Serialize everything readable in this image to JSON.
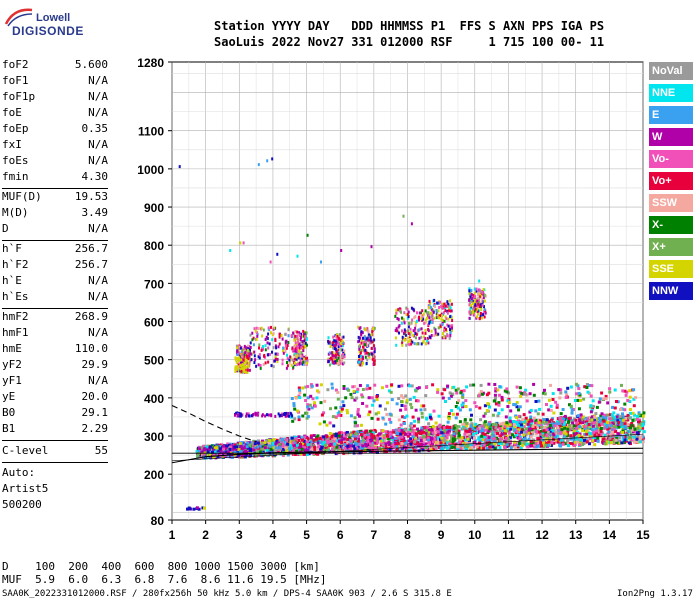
{
  "logo": {
    "line1": "Lowell",
    "line2": "DIGISONDE",
    "color": "#2a3a8c"
  },
  "header": {
    "line1": "Station YYYY DAY   DDD HHMMSS P1  FFS S AXN PPS IGA PS",
    "line2": "SaoLuis 2022 Nov27 331 012000 RSF     1 715 100 00- 11"
  },
  "params": {
    "group1": [
      {
        "name": "foF2",
        "value": "5.600"
      },
      {
        "name": "foF1",
        "value": "N/A"
      },
      {
        "name": "foF1p",
        "value": "N/A"
      },
      {
        "name": "foE",
        "value": "N/A"
      },
      {
        "name": "foEp",
        "value": "0.35"
      },
      {
        "name": "fxI",
        "value": "N/A"
      },
      {
        "name": "foEs",
        "value": "N/A"
      },
      {
        "name": "fmin",
        "value": "4.30"
      }
    ],
    "group2": [
      {
        "name": "MUF(D)",
        "value": "19.53"
      },
      {
        "name": "M(D)",
        "value": "3.49"
      },
      {
        "name": "D",
        "value": "N/A"
      }
    ],
    "group3": [
      {
        "name": "h`F",
        "value": "256.7"
      },
      {
        "name": "h`F2",
        "value": "256.7"
      },
      {
        "name": "h`E",
        "value": "N/A"
      },
      {
        "name": "h`Es",
        "value": "N/A"
      }
    ],
    "group4": [
      {
        "name": "hmF2",
        "value": "268.9"
      },
      {
        "name": "hmF1",
        "value": "N/A"
      },
      {
        "name": "hmE",
        "value": "110.0"
      },
      {
        "name": "yF2",
        "value": "29.9"
      },
      {
        "name": "yF1",
        "value": "N/A"
      },
      {
        "name": "yE",
        "value": "20.0"
      },
      {
        "name": "B0",
        "value": "29.1"
      },
      {
        "name": "B1",
        "value": "2.29"
      }
    ],
    "clevel": {
      "name": "C-level",
      "value": "55"
    },
    "auto": [
      "Auto:",
      "Artist5",
      "500200"
    ]
  },
  "legend": [
    {
      "label": "NoVal",
      "color": "#9a9a9a"
    },
    {
      "label": "NNE",
      "color": "#00e5ee"
    },
    {
      "label": "E",
      "color": "#3aa0f0"
    },
    {
      "label": "W",
      "color": "#b000a8"
    },
    {
      "label": "Vo-",
      "color": "#f050b8"
    },
    {
      "label": "Vo+",
      "color": "#e8003c"
    },
    {
      "label": "SSW",
      "color": "#f4a8a0"
    },
    {
      "label": "X-",
      "color": "#008000"
    },
    {
      "label": "X+",
      "color": "#70b050"
    },
    {
      "label": "SSE",
      "color": "#d4d400"
    },
    {
      "label": "NNW",
      "color": "#1010c0"
    }
  ],
  "chart_data": {
    "type": "scatter",
    "xlim": [
      1,
      15
    ],
    "ylim": [
      80,
      1280
    ],
    "x_ticks": [
      1,
      2,
      3,
      4,
      5,
      6,
      7,
      8,
      9,
      10,
      11,
      12,
      13,
      14,
      15
    ],
    "y_ticks": [
      80,
      200,
      300,
      400,
      500,
      600,
      700,
      800,
      900,
      1000,
      1100,
      1280
    ],
    "grid": true,
    "legend_position": "right",
    "traces": {
      "o_trace": {
        "x": [
          1,
          2,
          3,
          4,
          5,
          6,
          7,
          8,
          9,
          10,
          11,
          12,
          13,
          14,
          15
        ],
        "y": [
          230,
          246,
          252,
          256,
          258,
          259,
          260,
          261,
          262,
          263,
          264,
          265,
          266,
          267,
          268
        ]
      },
      "dashed_trace": {
        "x": [
          1,
          1.5,
          2,
          2.5,
          3,
          3.5
        ],
        "y": [
          380,
          360,
          338,
          318,
          300,
          285
        ]
      },
      "hline": {
        "y": 255
      },
      "extraordinary_trace": {
        "x": [
          1,
          15
        ],
        "y": [
          235,
          305
        ]
      }
    }
  },
  "footer": {
    "row1": "D    100  200  400  600  800 1000 1500 3000 [km]",
    "row2": "MUF  5.9  6.0  6.3  6.8  7.6  8.6 11.6 19.5 [MHz]",
    "row3": "SAA0K_2022331012000.RSF / 280fx256h 50 kHz 5.0 km / DPS-4 SAA0K 903 / 2.6 S 315.8 E",
    "version": "Ion2Png 1.3.17"
  }
}
